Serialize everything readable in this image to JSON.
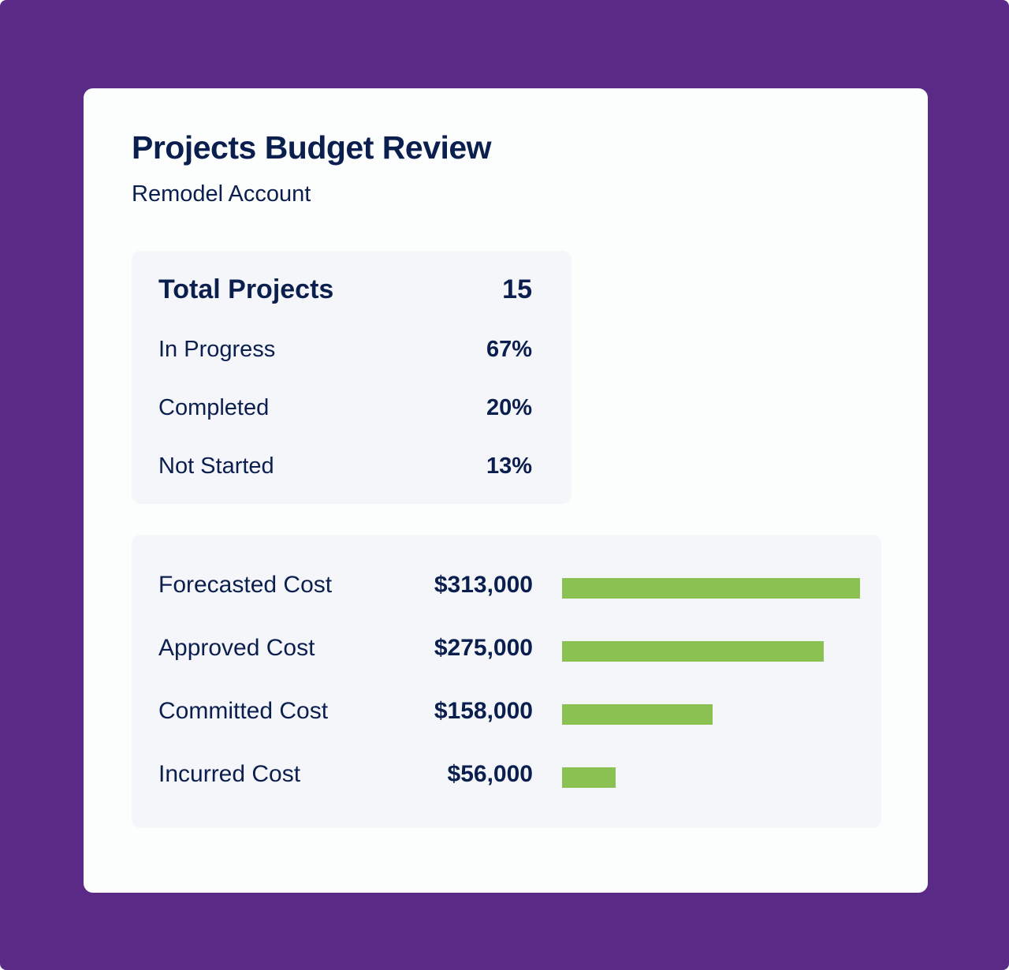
{
  "header": {
    "title": "Projects Budget Review",
    "subtitle": "Remodel Account"
  },
  "stats": {
    "total": {
      "label": "Total Projects",
      "value": "15"
    },
    "rows": [
      {
        "label": "In Progress",
        "value": "67%"
      },
      {
        "label": "Completed",
        "value": "20%"
      },
      {
        "label": "Not Started",
        "value": "13%"
      }
    ]
  },
  "costs": {
    "bar_color": "#8bc053",
    "max": 313000,
    "rows": [
      {
        "label": "Forecasted Cost",
        "value": "$313,000",
        "amount": 313000
      },
      {
        "label": "Approved Cost",
        "value": "$275,000",
        "amount": 275000
      },
      {
        "label": "Committed Cost",
        "value": "$158,000",
        "amount": 158000
      },
      {
        "label": "Incurred Cost",
        "value": "$56,000",
        "amount": 56000
      }
    ]
  },
  "colors": {
    "frame": "#5b2a86",
    "text": "#0b1f4f",
    "panel": "#f5f6f9"
  }
}
